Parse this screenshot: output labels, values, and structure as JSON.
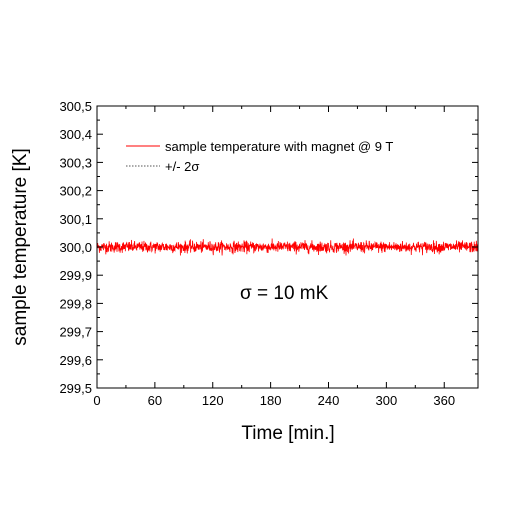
{
  "chart_data": {
    "type": "line",
    "xlabel": "Time [min.]",
    "ylabel": "sample temperature [K]",
    "xlim": [
      0,
      395
    ],
    "ylim": [
      299.5,
      300.5
    ],
    "x_ticks": [
      0,
      60,
      120,
      180,
      240,
      300,
      360
    ],
    "x_tick_labels": [
      "0",
      "60",
      "120",
      "180",
      "240",
      "300",
      "360"
    ],
    "y_ticks": [
      299.5,
      299.6,
      299.7,
      299.8,
      299.9,
      300.0,
      300.1,
      300.2,
      300.3,
      300.4,
      300.5
    ],
    "y_tick_labels": [
      "299,5",
      "299,6",
      "299,7",
      "299,8",
      "299,9",
      "300,0",
      "300,1",
      "300,2",
      "300,3",
      "300,4",
      "300,5"
    ],
    "grid": false,
    "legend_position": "top-left",
    "series": [
      {
        "name": "sample temperature with magnet @ 9 T",
        "color": "#ff0000",
        "style": "solid",
        "mean": 300.0,
        "sigma": 0.01,
        "x_range": [
          0,
          395
        ]
      },
      {
        "name": "+/- 2σ",
        "color": "#555555",
        "style": "dotted"
      }
    ],
    "annotations": [
      "σ = 10 mK"
    ]
  }
}
